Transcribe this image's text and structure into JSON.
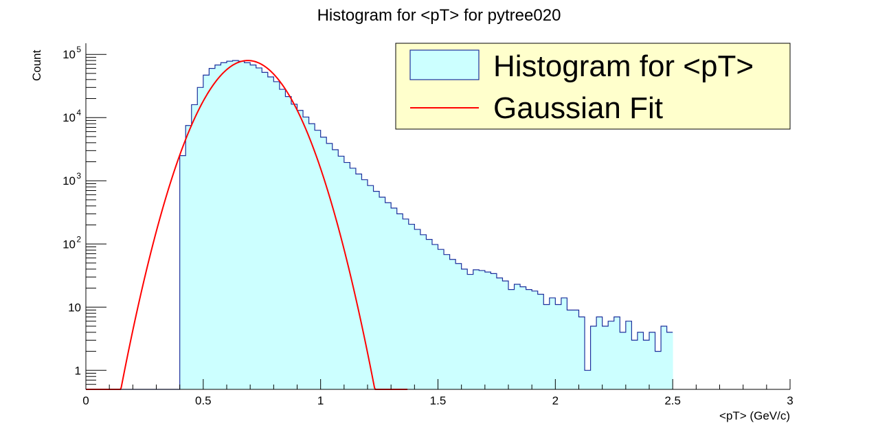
{
  "chart_data": {
    "type": "bar",
    "title": "Histogram for <pT> for pytree020",
    "xlabel": "<pT> (GeV/c)",
    "ylabel": "Count",
    "xlim": [
      0,
      3
    ],
    "ylim": [
      0.5,
      150000
    ],
    "yscale": "log",
    "bin_width": 0.025,
    "x_ticks": [
      "0",
      "0.5",
      "1",
      "1.5",
      "2",
      "2.5",
      "3"
    ],
    "y_ticks": [
      {
        "value": 1,
        "base": "1",
        "exp": ""
      },
      {
        "value": 10,
        "base": "10",
        "exp": ""
      },
      {
        "value": 100,
        "base": "10",
        "exp": "2"
      },
      {
        "value": 1000,
        "base": "10",
        "exp": "3"
      },
      {
        "value": 10000,
        "base": "10",
        "exp": "4"
      },
      {
        "value": 100000,
        "base": "10",
        "exp": "5"
      }
    ],
    "legend": {
      "position": "top-right",
      "entries": [
        {
          "label": "Histogram for <pT>",
          "kind": "fill"
        },
        {
          "label": "Gaussian Fit",
          "kind": "line"
        }
      ]
    },
    "colors": {
      "hist_fill": "#ccffff",
      "hist_line": "#1c2f9c",
      "fit_line": "#ff0000",
      "legend_bg": "#ffffcc"
    },
    "series": [
      {
        "name": "Histogram for <pT>",
        "bin_edges_start": 0.0,
        "values": [
          0,
          0,
          0,
          0,
          0,
          0,
          0,
          0,
          0,
          0,
          0,
          0,
          0,
          0,
          0,
          0,
          2500,
          7500,
          16000,
          30000,
          47000,
          60000,
          68000,
          74000,
          78000,
          80000,
          78000,
          74000,
          68000,
          61000,
          52000,
          44000,
          37000,
          28000,
          21500,
          16300,
          13000,
          10200,
          8000,
          6300,
          4900,
          3900,
          3100,
          2450,
          1950,
          1580,
          1280,
          1040,
          840,
          680,
          550,
          450,
          370,
          300,
          248,
          205,
          170,
          140,
          118,
          98,
          82,
          68,
          57,
          49,
          40,
          33,
          39,
          38,
          36,
          34,
          29,
          26,
          19,
          23,
          21,
          19,
          18,
          16,
          11,
          14,
          11,
          14,
          9,
          9,
          7,
          1,
          5,
          7,
          5,
          6,
          7,
          4,
          6,
          3,
          4,
          3,
          4,
          2,
          5,
          4
        ]
      },
      {
        "name": "Gaussian Fit",
        "kind": "gaussian",
        "amplitude": 80000,
        "mean": 0.69,
        "sigma": 0.1105,
        "x_range": [
          0.0,
          1.37
        ]
      }
    ]
  }
}
